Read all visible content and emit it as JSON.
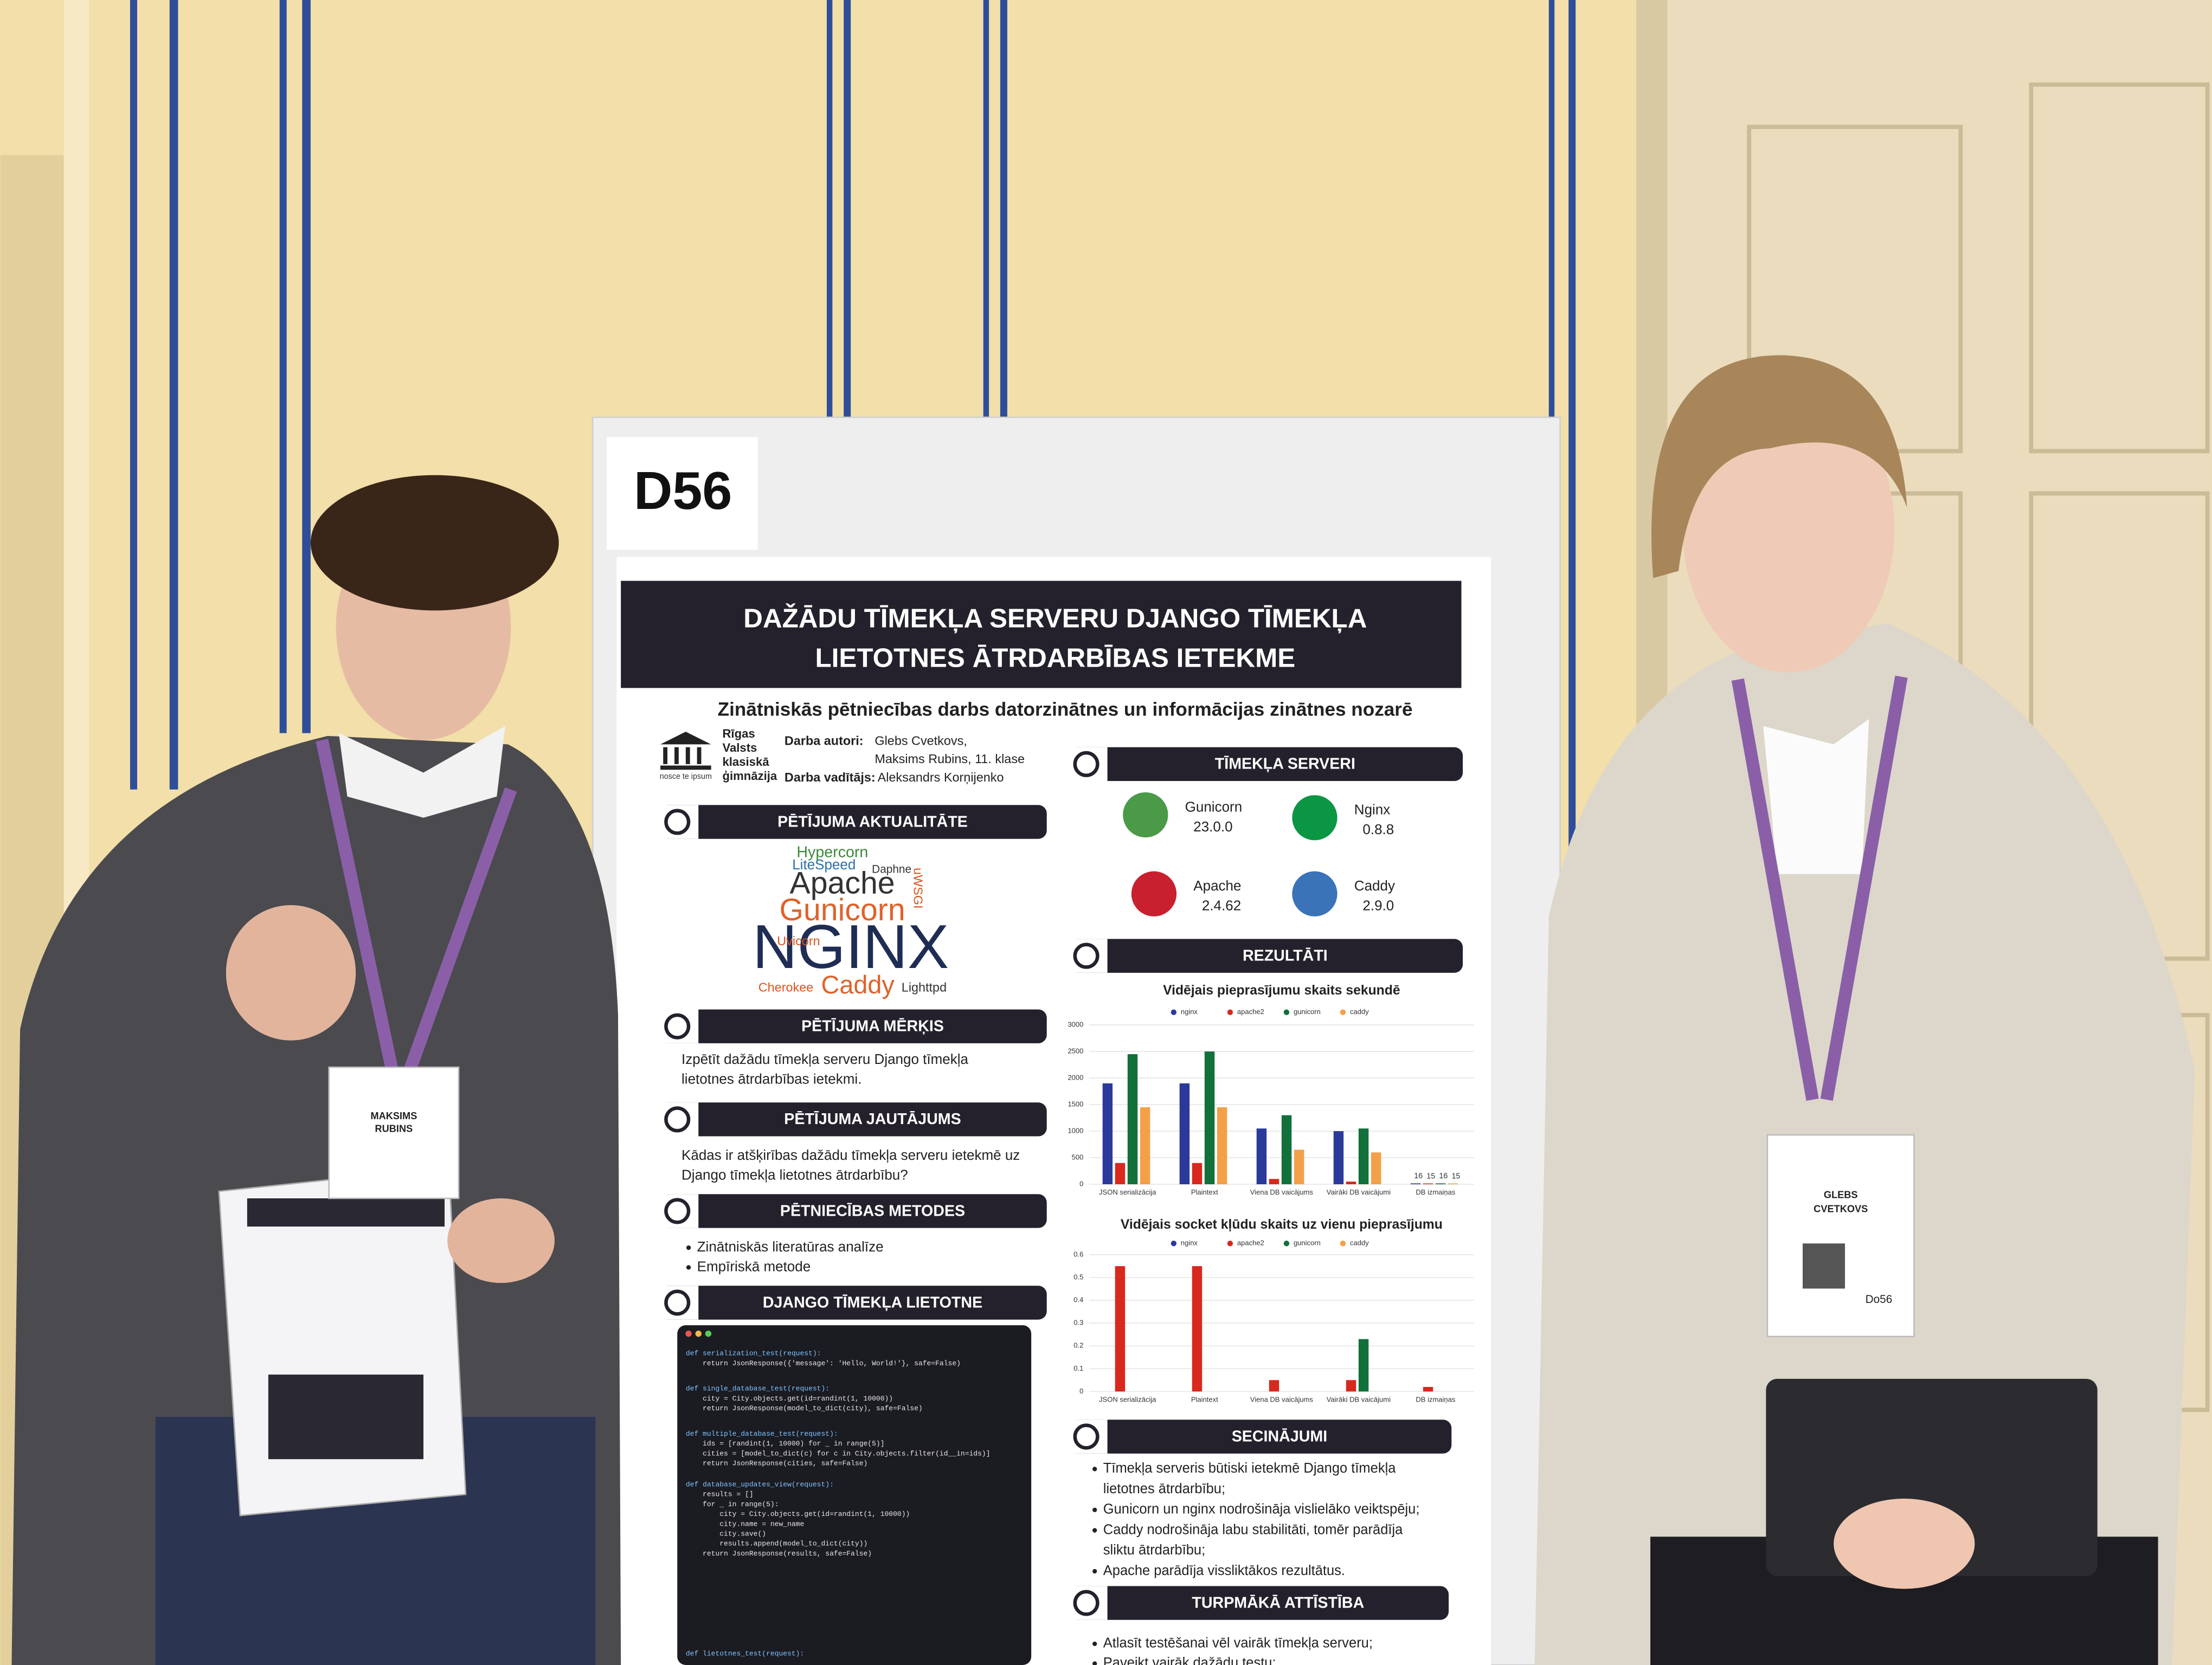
{
  "board_label": "D56",
  "poster": {
    "title": [
      "DAŽĀDU TĪMEKĻA SERVERU DJANGO TĪMEKĻA",
      "LIETOTNES ĀTRDARBĪBAS IETEKME"
    ],
    "subtitle": "Zinātniskās pētniecības darbs datorzinātnes un informācijas zinātnes nozarē",
    "school": {
      "name": [
        "Rīgas",
        "Valsts",
        "klasiskā",
        "ģimnāzija"
      ],
      "motto": "nosce te ipsum"
    },
    "authors_label": "Darba autori:",
    "authors": [
      "Glebs Cvetkovs,",
      "Maksims Rubins, 11. klase"
    ],
    "supervisor_label": "Darba vadītājs:",
    "supervisor": "Aleksandrs Korņijenko",
    "aktualitate": {
      "heading": "PĒTĪJUMA AKTUALITĀTE",
      "words": [
        "Hypercorn",
        "LiteSpeed",
        "Daphne",
        "Apache",
        "uWSGI",
        "Gunicorn",
        "NGINX",
        "Uvicorn",
        "Cherokee",
        "Caddy",
        "Lighttpd"
      ]
    },
    "merkis": {
      "heading": "PĒTĪJUMA MĒRĶIS",
      "text": [
        "Izpētīt dažādu tīmekļa serveru Django tīmekļa",
        "lietotnes ātrdarbības ietekmi."
      ]
    },
    "jautajums": {
      "heading": "PĒTĪJUMA JAUTĀJUMS",
      "text": [
        "Kādas ir atšķirības dažādu tīmekļa serveru ietekmē uz",
        "Django tīmekļa lietotnes ātrdarbību?"
      ]
    },
    "metodes": {
      "heading": "PĒTNIECĪBAS METODES",
      "bullets": [
        [
          "Zinātniskās literatūras analīze"
        ],
        [
          "Empīriskā metode"
        ]
      ]
    },
    "lietotne": {
      "heading": "DJANGO TĪMEKĻA LIETOTNE",
      "code": [
        [
          "def serialization_test(request):",
          "    return JsonResponse({'message': 'Hello, World!'}, safe=False)"
        ],
        [
          "def single_database_test(request):",
          "    city = City.objects.get(id=randint(1, 10000))",
          "    return JsonResponse(model_to_dict(city), safe=False)"
        ],
        [
          "def multiple_database_test(request):",
          "    ids = [randint(1, 10000) for _ in range(5)]",
          "    cities = [model_to_dict(c) for c in City.objects.filter(id__in=ids)]",
          "    return JsonResponse(cities, safe=False)"
        ],
        [
          "def database_updates_view(request):",
          "    results = []",
          "    for _ in range(5):",
          "        city = City.objects.get(id=randint(1, 10000))",
          "        city.name = new_name",
          "        city.save()",
          "        results.append(model_to_dict(city))",
          "    return JsonResponse(results, safe=False)"
        ],
        [
          "def lietotnes_test(request):"
        ]
      ]
    },
    "serveri": {
      "heading": "TĪMEKĻA SERVERI",
      "items": [
        {
          "name": "Gunicorn",
          "version": "23.0.0"
        },
        {
          "name": "Nginx",
          "version": "0.8.8"
        },
        {
          "name": "Apache",
          "version": "2.4.62"
        },
        {
          "name": "Caddy",
          "version": "2.9.0"
        }
      ]
    },
    "rezultati": {
      "heading": "REZULTĀTI",
      "charts": [
        {
          "type": "bar",
          "title": "Vidējais pieprasījumu skaits sekundē",
          "categories": [
            "JSON serializācija",
            "Plaintext",
            "Viena DB vaicājums",
            "Vairāki DB vaicājumi",
            "DB izmaiņas"
          ],
          "series": [
            {
              "name": "nginx",
              "color": "#2b3a9a",
              "values": [
                1900,
                1900,
                1050,
                1000,
                16
              ]
            },
            {
              "name": "apache2",
              "color": "#d9281e",
              "values": [
                400,
                400,
                100,
                50,
                15
              ]
            },
            {
              "name": "gunicorn",
              "color": "#12703a",
              "values": [
                2450,
                2500,
                1300,
                1050,
                16
              ]
            },
            {
              "name": "caddy",
              "color": "#f2a04a",
              "values": [
                1450,
                1450,
                650,
                600,
                15
              ]
            }
          ],
          "ylim": [
            0,
            3000
          ],
          "yticks": [
            0,
            500,
            1000,
            1500,
            2000,
            2500,
            3000
          ],
          "grid": true
        },
        {
          "type": "bar",
          "title": "Vidējais socket kļūdu skaits uz vienu pieprasījumu",
          "categories": [
            "JSON serializācija",
            "Plaintext",
            "Viena DB vaicājums",
            "Vairāki DB vaicājumi",
            "DB izmaiņas"
          ],
          "series": [
            {
              "name": "nginx",
              "color": "#2b3a9a",
              "values": [
                0,
                0,
                0,
                0,
                0
              ]
            },
            {
              "name": "apache2",
              "color": "#d9281e",
              "values": [
                0.55,
                0.55,
                0.05,
                0.05,
                0.02
              ]
            },
            {
              "name": "gunicorn",
              "color": "#12703a",
              "values": [
                0,
                0,
                0,
                0.23,
                0
              ]
            },
            {
              "name": "caddy",
              "color": "#f2a04a",
              "values": [
                0,
                0,
                0,
                0,
                0
              ]
            }
          ],
          "ylim": [
            0,
            0.6
          ],
          "yticks": [
            0,
            0.1,
            0.2,
            0.3,
            0.4,
            0.5,
            0.6
          ],
          "grid": true
        }
      ]
    },
    "secinajumi": {
      "heading": "SECINĀJUMI",
      "bullets": [
        [
          "Tīmekļa serveris būtiski ietekmē Django tīmekļa",
          "lietotnes ātrdarbību;"
        ],
        [
          "Gunicorn un nginx nodrošināja vislielāko veiktspēju;"
        ],
        [
          "Caddy nodrošināja labu stabilitāti, tomēr parādīja",
          "sliktu ātrdarbību;"
        ],
        [
          "Apache parādīja vissliktākos rezultātus."
        ]
      ]
    },
    "attistiba": {
      "heading": "TURPMĀKĀ ATTĪSTĪBA",
      "bullets": [
        [
          "Atlasīt testēšanai vēl vairāk tīmekļa serveru;"
        ],
        [
          "Paveikt vairāk dažādu testu;"
        ]
      ]
    }
  },
  "badges": [
    {
      "lines": [
        "MAKSIMS",
        "RUBINS"
      ]
    },
    {
      "lines": [
        "GLEBS",
        "CVETKOVS"
      ],
      "code": "Do56"
    }
  ]
}
